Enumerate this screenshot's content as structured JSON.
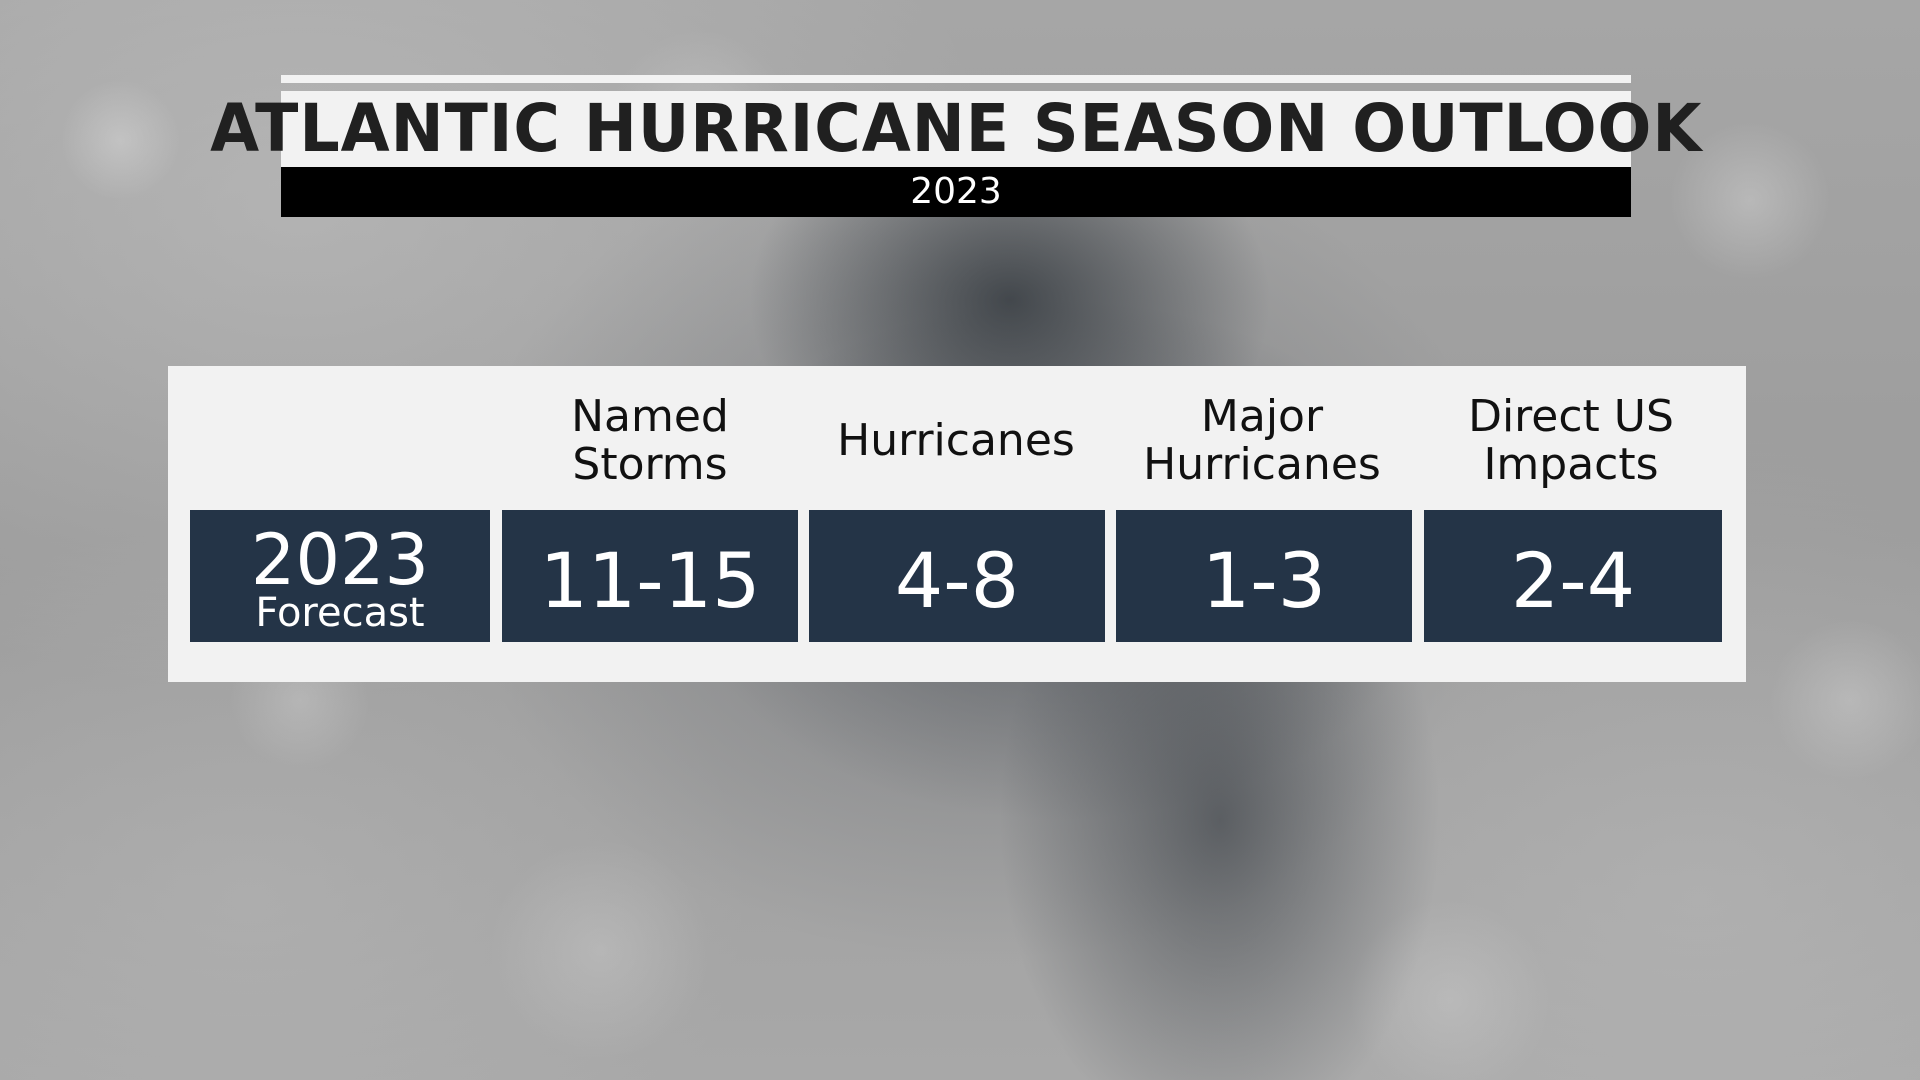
{
  "title": "ATLANTIC HURRICANE SEASON OUTLOOK",
  "subtitle": "2023",
  "table": {
    "columns": [
      "Named\nStorms",
      "Hurricanes",
      "Major\nHurricanes",
      "Direct US\nImpacts"
    ],
    "row": {
      "label_year": "2023",
      "label_sub": "Forecast",
      "values": [
        "11-15",
        "4-8",
        "1-3",
        "2-4"
      ]
    }
  },
  "colors": {
    "cell_background": "#243447",
    "panel_background": "#f2f2f2",
    "title_bar": "#f2f2f2",
    "subtitle_bar": "#000000"
  }
}
